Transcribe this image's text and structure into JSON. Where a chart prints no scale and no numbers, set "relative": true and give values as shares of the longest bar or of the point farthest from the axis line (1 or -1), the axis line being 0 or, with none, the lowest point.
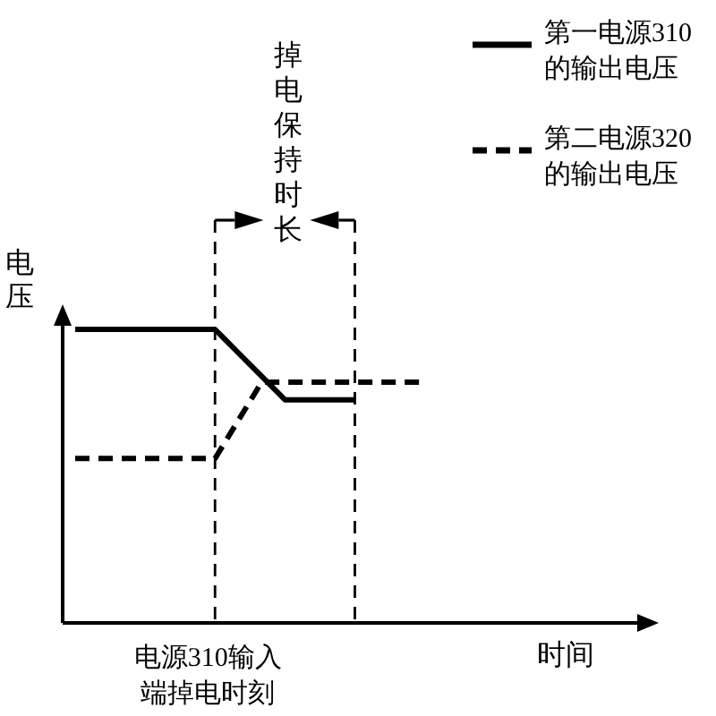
{
  "chart_data": {
    "type": "line",
    "xlabel": "时间",
    "ylabel": "电压",
    "relative": true,
    "categories": [
      null,
      null,
      null,
      null,
      null,
      null,
      null,
      null,
      null,
      null,
      null,
      null,
      null,
      null,
      null,
      null,
      null,
      null,
      null,
      null,
      null,
      null,
      null,
      null,
      null
    ],
    "series": [
      {
        "name": "第一电源310的输出电压",
        "color": "#000000",
        "line_style": "solid",
        "values": [
          1,
          1,
          1,
          1,
          1,
          1,
          1,
          0.92,
          0.84,
          0.76,
          0.76,
          0.76,
          0.76,
          null,
          null,
          null,
          null,
          null,
          null,
          null,
          null,
          null,
          null,
          null,
          null
        ]
      },
      {
        "name": "第二电源320的输出电压",
        "color": "#000000",
        "line_style": "dashed",
        "values": [
          0.56,
          0.56,
          0.56,
          0.56,
          0.56,
          0.56,
          0.56,
          0.69,
          0.82,
          0.82,
          0.82,
          0.82,
          0.82,
          0.82,
          0.82,
          0.82,
          null,
          null,
          null,
          null,
          null,
          null,
          null,
          null,
          null
        ]
      }
    ],
    "annotations": [
      "掉电保持时长",
      "电源310输入端掉电时刻"
    ],
    "legend": "top right"
  }
}
